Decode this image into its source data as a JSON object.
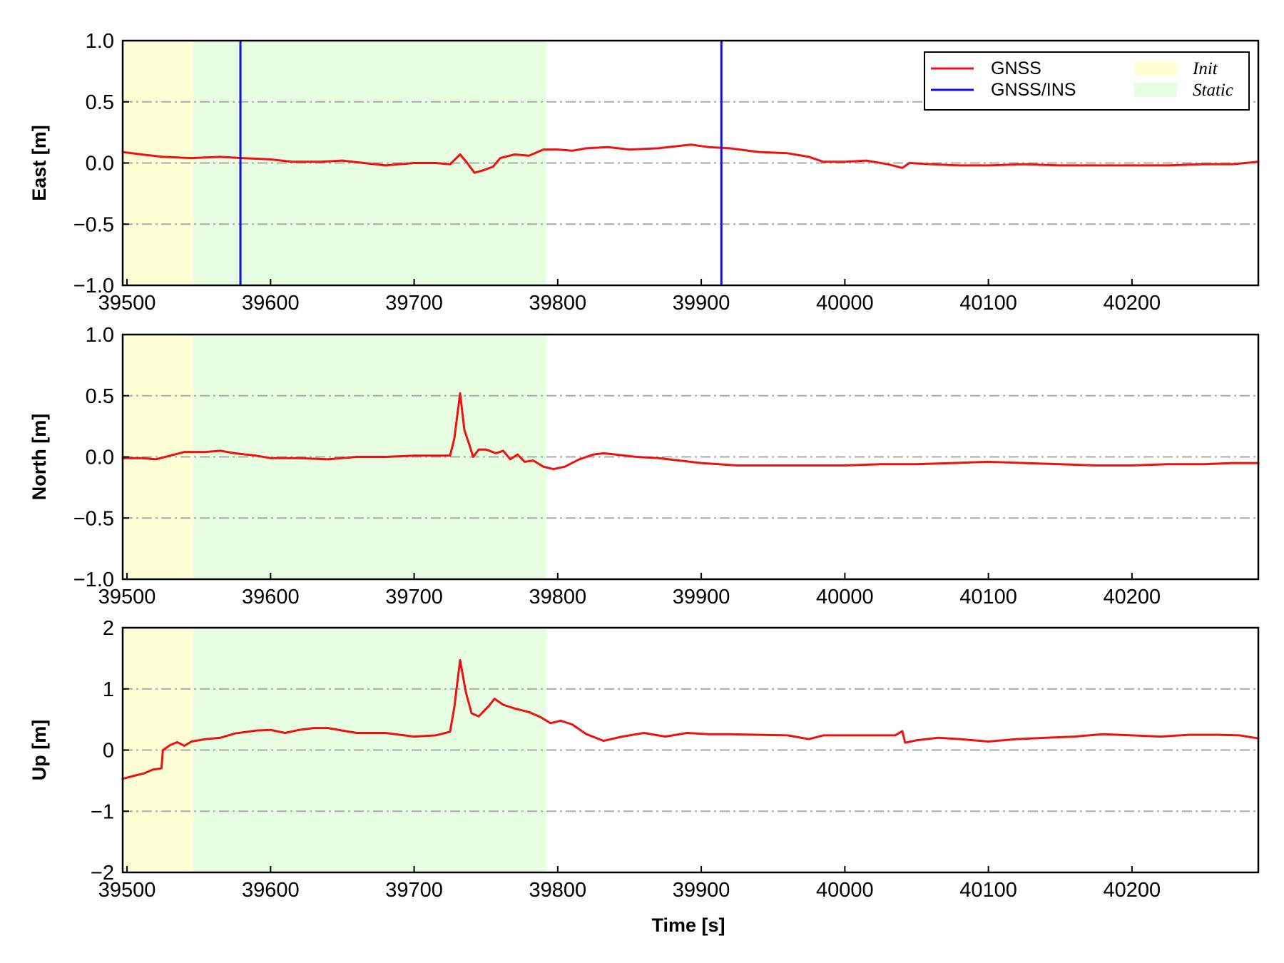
{
  "chart_data": {
    "type": "line",
    "xlabel": "Time [s]",
    "xlim": [
      39497,
      40288
    ],
    "xticks": [
      39500,
      39600,
      39700,
      39800,
      39900,
      40000,
      40100,
      40200
    ],
    "grid": "horizontal dash-dot at ±0.5/0 (±1 for Up), gray",
    "legend": {
      "placement": "top-right of first panel",
      "entries": [
        {
          "label": "GNSS",
          "kind": "line",
          "color": "#ee1111"
        },
        {
          "label": "GNSS/INS",
          "kind": "line",
          "color": "#1111dd"
        },
        {
          "label": "Init",
          "kind": "patch",
          "color": "#ffffd6"
        },
        {
          "label": "Static",
          "kind": "patch",
          "color": "#e6fde2"
        }
      ]
    },
    "shaded_regions": [
      {
        "label": "Init",
        "x": [
          39497,
          39546
        ],
        "color": "#ffffd6"
      },
      {
        "label": "Static",
        "x": [
          39546,
          39792
        ],
        "color": "#e6fde2"
      }
    ],
    "panels": [
      {
        "ylabel": "East [m]",
        "ylim": [
          -1.0,
          1.0
        ],
        "yticks": [
          1.0,
          0.5,
          0.0,
          -0.5,
          -1.0
        ],
        "ytick_labels": [
          "1.0",
          "0.5",
          "0.0",
          "−0.5",
          "−1.0"
        ],
        "grid_y": [
          0.5,
          0.0,
          -0.5
        ],
        "series": [
          {
            "name": "GNSS",
            "color": "#ee1111",
            "points": [
              [
                39497,
                0.09
              ],
              [
                39510,
                0.07
              ],
              [
                39525,
                0.05
              ],
              [
                39545,
                0.04
              ],
              [
                39565,
                0.05
              ],
              [
                39580,
                0.04
              ],
              [
                39600,
                0.03
              ],
              [
                39615,
                0.01
              ],
              [
                39635,
                0.01
              ],
              [
                39650,
                0.02
              ],
              [
                39665,
                0.0
              ],
              [
                39680,
                -0.02
              ],
              [
                39700,
                0.0
              ],
              [
                39715,
                0.0
              ],
              [
                39725,
                -0.01
              ],
              [
                39732,
                0.07
              ],
              [
                39737,
                0.0
              ],
              [
                39742,
                -0.08
              ],
              [
                39748,
                -0.06
              ],
              [
                39755,
                -0.03
              ],
              [
                39760,
                0.04
              ],
              [
                39770,
                0.07
              ],
              [
                39780,
                0.06
              ],
              [
                39790,
                0.11
              ],
              [
                39800,
                0.11
              ],
              [
                39810,
                0.1
              ],
              [
                39820,
                0.12
              ],
              [
                39835,
                0.13
              ],
              [
                39850,
                0.11
              ],
              [
                39870,
                0.12
              ],
              [
                39885,
                0.14
              ],
              [
                39893,
                0.15
              ],
              [
                39905,
                0.13
              ],
              [
                39920,
                0.12
              ],
              [
                39940,
                0.09
              ],
              [
                39960,
                0.08
              ],
              [
                39975,
                0.05
              ],
              [
                39985,
                0.01
              ],
              [
                40000,
                0.01
              ],
              [
                40015,
                0.02
              ],
              [
                40030,
                -0.01
              ],
              [
                40040,
                -0.04
              ],
              [
                40045,
                0.0
              ],
              [
                40060,
                -0.01
              ],
              [
                40080,
                -0.02
              ],
              [
                40100,
                -0.02
              ],
              [
                40125,
                -0.01
              ],
              [
                40150,
                -0.02
              ],
              [
                40175,
                -0.02
              ],
              [
                40200,
                -0.02
              ],
              [
                40225,
                -0.02
              ],
              [
                40250,
                -0.01
              ],
              [
                40270,
                -0.01
              ],
              [
                40288,
                0.01
              ]
            ]
          },
          {
            "name": "GNSS/INS",
            "color": "#1111dd",
            "vertical_lines_x": [
              39579,
              39914
            ]
          }
        ]
      },
      {
        "ylabel": "North [m]",
        "ylim": [
          -1.0,
          1.0
        ],
        "yticks": [
          1.0,
          0.5,
          0.0,
          -0.5,
          -1.0
        ],
        "ytick_labels": [
          "1.0",
          "0.5",
          "0.0",
          "−0.5",
          "−1.0"
        ],
        "grid_y": [
          0.5,
          0.0,
          -0.5
        ],
        "series": [
          {
            "name": "GNSS",
            "color": "#ee1111",
            "points": [
              [
                39497,
                -0.01
              ],
              [
                39510,
                -0.01
              ],
              [
                39520,
                -0.02
              ],
              [
                39530,
                0.01
              ],
              [
                39540,
                0.04
              ],
              [
                39555,
                0.04
              ],
              [
                39565,
                0.05
              ],
              [
                39575,
                0.03
              ],
              [
                39590,
                0.01
              ],
              [
                39600,
                -0.01
              ],
              [
                39620,
                -0.01
              ],
              [
                39640,
                -0.02
              ],
              [
                39660,
                0.0
              ],
              [
                39680,
                0.0
              ],
              [
                39700,
                0.01
              ],
              [
                39715,
                0.01
              ],
              [
                39725,
                0.01
              ],
              [
                39728,
                0.15
              ],
              [
                39732,
                0.52
              ],
              [
                39735,
                0.22
              ],
              [
                39739,
                0.08
              ],
              [
                39741,
                0.0
              ],
              [
                39745,
                0.06
              ],
              [
                39750,
                0.06
              ],
              [
                39757,
                0.03
              ],
              [
                39762,
                0.05
              ],
              [
                39767,
                -0.02
              ],
              [
                39772,
                0.02
              ],
              [
                39777,
                -0.04
              ],
              [
                39783,
                -0.03
              ],
              [
                39790,
                -0.08
              ],
              [
                39797,
                -0.1
              ],
              [
                39805,
                -0.08
              ],
              [
                39815,
                -0.02
              ],
              [
                39825,
                0.02
              ],
              [
                39832,
                0.03
              ],
              [
                39840,
                0.02
              ],
              [
                39855,
                0.0
              ],
              [
                39870,
                -0.01
              ],
              [
                39885,
                -0.03
              ],
              [
                39900,
                -0.05
              ],
              [
                39925,
                -0.07
              ],
              [
                39950,
                -0.07
              ],
              [
                39975,
                -0.07
              ],
              [
                40000,
                -0.07
              ],
              [
                40025,
                -0.06
              ],
              [
                40050,
                -0.06
              ],
              [
                40075,
                -0.05
              ],
              [
                40100,
                -0.04
              ],
              [
                40125,
                -0.05
              ],
              [
                40150,
                -0.06
              ],
              [
                40175,
                -0.07
              ],
              [
                40200,
                -0.07
              ],
              [
                40225,
                -0.06
              ],
              [
                40250,
                -0.06
              ],
              [
                40270,
                -0.05
              ],
              [
                40288,
                -0.05
              ]
            ]
          }
        ]
      },
      {
        "ylabel": "Up [m]",
        "ylim": [
          -2,
          2
        ],
        "yticks": [
          2,
          1,
          0,
          -1,
          -2
        ],
        "ytick_labels": [
          "2",
          "1",
          "0",
          "−1",
          "−2"
        ],
        "grid_y": [
          1,
          0,
          -1
        ],
        "series": [
          {
            "name": "GNSS",
            "color": "#ee1111",
            "points": [
              [
                39497,
                -0.47
              ],
              [
                39505,
                -0.42
              ],
              [
                39512,
                -0.38
              ],
              [
                39518,
                -0.32
              ],
              [
                39524,
                -0.3
              ],
              [
                39525,
                0.0
              ],
              [
                39530,
                0.08
              ],
              [
                39535,
                0.13
              ],
              [
                39540,
                0.07
              ],
              [
                39545,
                0.14
              ],
              [
                39555,
                0.18
              ],
              [
                39565,
                0.2
              ],
              [
                39575,
                0.27
              ],
              [
                39590,
                0.32
              ],
              [
                39600,
                0.33
              ],
              [
                39610,
                0.28
              ],
              [
                39620,
                0.33
              ],
              [
                39630,
                0.36
              ],
              [
                39640,
                0.36
              ],
              [
                39650,
                0.32
              ],
              [
                39660,
                0.28
              ],
              [
                39680,
                0.28
              ],
              [
                39700,
                0.22
              ],
              [
                39715,
                0.24
              ],
              [
                39725,
                0.3
              ],
              [
                39728,
                0.7
              ],
              [
                39732,
                1.47
              ],
              [
                39736,
                0.95
              ],
              [
                39740,
                0.6
              ],
              [
                39745,
                0.55
              ],
              [
                39752,
                0.72
              ],
              [
                39756,
                0.84
              ],
              [
                39762,
                0.74
              ],
              [
                39770,
                0.68
              ],
              [
                39780,
                0.62
              ],
              [
                39788,
                0.54
              ],
              [
                39795,
                0.44
              ],
              [
                39802,
                0.48
              ],
              [
                39810,
                0.42
              ],
              [
                39820,
                0.26
              ],
              [
                39832,
                0.15
              ],
              [
                39845,
                0.22
              ],
              [
                39860,
                0.28
              ],
              [
                39875,
                0.22
              ],
              [
                39890,
                0.28
              ],
              [
                39905,
                0.26
              ],
              [
                39920,
                0.26
              ],
              [
                39940,
                0.25
              ],
              [
                39960,
                0.24
              ],
              [
                39975,
                0.18
              ],
              [
                39985,
                0.24
              ],
              [
                40000,
                0.24
              ],
              [
                40020,
                0.24
              ],
              [
                40035,
                0.24
              ],
              [
                40040,
                0.31
              ],
              [
                40042,
                0.12
              ],
              [
                40050,
                0.16
              ],
              [
                40065,
                0.2
              ],
              [
                40080,
                0.18
              ],
              [
                40100,
                0.14
              ],
              [
                40120,
                0.18
              ],
              [
                40140,
                0.2
              ],
              [
                40160,
                0.22
              ],
              [
                40180,
                0.26
              ],
              [
                40200,
                0.24
              ],
              [
                40220,
                0.22
              ],
              [
                40240,
                0.25
              ],
              [
                40260,
                0.25
              ],
              [
                40275,
                0.24
              ],
              [
                40288,
                0.19
              ]
            ]
          }
        ]
      }
    ]
  }
}
